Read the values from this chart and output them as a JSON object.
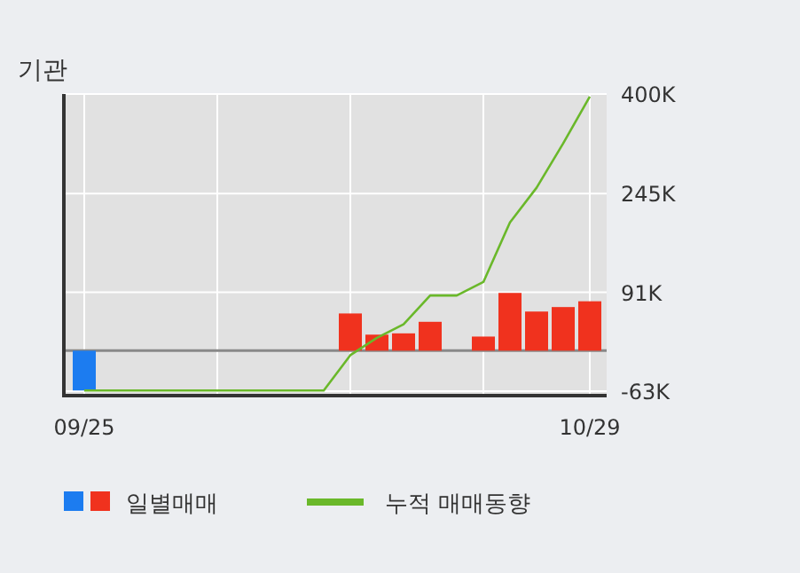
{
  "chart_data": {
    "type": "bar",
    "title": "기관",
    "categories": [
      "09/25",
      null,
      null,
      null,
      null,
      null,
      null,
      null,
      null,
      null,
      null,
      null,
      null,
      null,
      null,
      null,
      null,
      null,
      null,
      "10/29"
    ],
    "series": [
      {
        "name": "일별매매",
        "colors": [
          "#1c7cf0",
          "#f0321e",
          "#f0321e",
          "#f0321e",
          "#f0321e",
          "#f0321e",
          "#f0321e",
          "#f0321e",
          "#f0321e",
          "#f0321e",
          "#f0321e",
          "#f0321e",
          "#f0321e",
          "#f0321e",
          "#f0321e",
          "#f0321e",
          "#f0321e",
          "#f0321e",
          "#f0321e",
          "#f0321e"
        ],
        "values": [
          -62000,
          0,
          0,
          0,
          0,
          0,
          0,
          0,
          0,
          0,
          58000,
          25000,
          27000,
          45000,
          0,
          22000,
          90000,
          61000,
          68000,
          77000
        ]
      },
      {
        "name": "누적 매매동향",
        "type": "line",
        "color": "#6ab82a",
        "values": [
          -62000,
          -62000,
          -62000,
          -62000,
          -62000,
          -62000,
          -62000,
          -62000,
          -62000,
          -62000,
          -7000,
          20000,
          41000,
          86000,
          86000,
          107000,
          200000,
          254000,
          323000,
          396000
        ]
      }
    ],
    "ylim": [
      -70000,
      400000
    ],
    "yticks": [
      {
        "value": -63000,
        "label": "-63K"
      },
      {
        "value": 91000,
        "label": "91K"
      },
      {
        "value": 245000,
        "label": "245K"
      },
      {
        "value": 400000,
        "label": "400K"
      }
    ],
    "ref_lines": [
      {
        "axis": "y",
        "value": 0,
        "color": "#888888"
      }
    ],
    "grid": true,
    "legend": "bottom"
  }
}
